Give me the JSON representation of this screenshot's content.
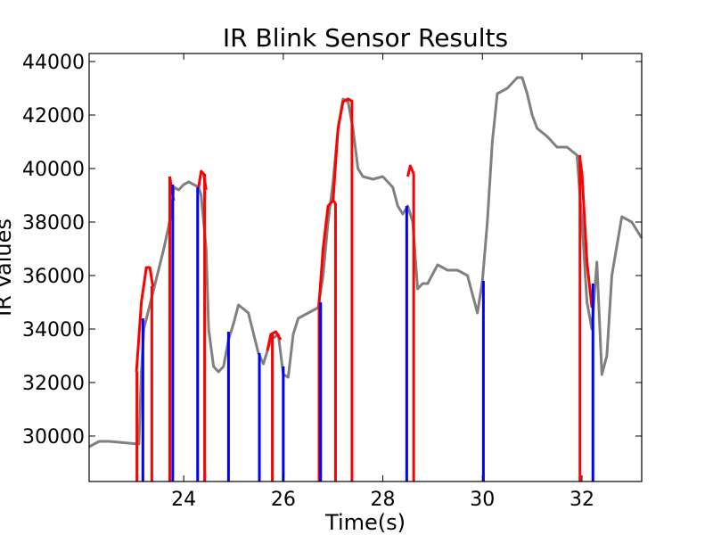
{
  "chart_data": {
    "type": "line",
    "title": "IR Blink Sensor Results",
    "xlabel": "Time(s)",
    "ylabel": "IR Values",
    "xlim": [
      22.1,
      33.2
    ],
    "ylim": [
      28300,
      44300
    ],
    "xticks": [
      24,
      26,
      28,
      30,
      32
    ],
    "yticks": [
      30000,
      32000,
      34000,
      36000,
      38000,
      40000,
      42000,
      44000
    ],
    "grid": false,
    "legend": "none",
    "colors": {
      "signal": "#808080",
      "blink": "#ff0000",
      "marker": "#0000ff"
    },
    "series": [
      {
        "style": "signal",
        "x": [
          22.1,
          22.3,
          22.5,
          22.8,
          23.1,
          23.15,
          23.2,
          23.4,
          23.6,
          23.75,
          23.8,
          23.9,
          24.0,
          24.1,
          24.2,
          24.3,
          24.35,
          24.45,
          24.5,
          24.6,
          24.7,
          24.8,
          24.9,
          25.0,
          25.1,
          25.3,
          25.5,
          25.6,
          25.75,
          25.9,
          26.0,
          26.1,
          26.2,
          26.3,
          26.5,
          26.7,
          26.8,
          26.9,
          27.0,
          27.1,
          27.2,
          27.3,
          27.4,
          27.5,
          27.6,
          27.8,
          28.0,
          28.2,
          28.3,
          28.4,
          28.5,
          28.6,
          28.7,
          28.8,
          28.9,
          29.1,
          29.3,
          29.5,
          29.7,
          29.9,
          30.0,
          30.1,
          30.2,
          30.3,
          30.5,
          30.7,
          30.8,
          30.9,
          31.0,
          31.1,
          31.3,
          31.5,
          31.7,
          31.9,
          32.0,
          32.1,
          32.2,
          32.3,
          32.4,
          32.5,
          32.6,
          32.8,
          33.0,
          33.2
        ],
        "y": [
          29600,
          29800,
          29800,
          29750,
          29700,
          32400,
          34000,
          35500,
          37000,
          38300,
          39300,
          39200,
          39400,
          39500,
          39400,
          39300,
          39000,
          37000,
          34000,
          32600,
          32400,
          32600,
          33600,
          34200,
          34900,
          34600,
          33100,
          32700,
          33600,
          33800,
          32300,
          32200,
          33800,
          34400,
          34600,
          34800,
          36000,
          38000,
          39500,
          41500,
          42600,
          42500,
          41500,
          40000,
          39700,
          39600,
          39700,
          39300,
          38600,
          38300,
          38600,
          38000,
          35500,
          35700,
          35700,
          36400,
          36200,
          36200,
          36000,
          34600,
          35800,
          38000,
          41000,
          42800,
          43000,
          43400,
          43400,
          42800,
          42000,
          41500,
          41200,
          40800,
          40800,
          40500,
          38000,
          35000,
          34000,
          36500,
          32300,
          33000,
          36000,
          38200,
          38000,
          37400
        ]
      },
      {
        "style": "blink",
        "segments": [
          {
            "x": [
              23.05,
              23.15,
              23.25,
              23.32,
              23.38
            ],
            "y": [
              32400,
              35000,
              36300,
              36300,
              35600
            ]
          },
          {
            "x": [
              23.72,
              23.76,
              23.8
            ],
            "y": [
              39700,
              39200,
              38800
            ]
          },
          {
            "x": [
              24.3,
              24.35,
              24.4,
              24.45
            ],
            "y": [
              39300,
              39900,
              39800,
              39200
            ]
          },
          {
            "x": [
              25.68,
              25.75,
              25.85,
              25.95
            ],
            "y": [
              33200,
              33800,
              33900,
              33600
            ]
          },
          {
            "x": [
              26.72,
              26.8,
              26.9,
              27.0,
              27.05
            ],
            "y": [
              35000,
              37000,
              38600,
              38800,
              38700
            ]
          },
          {
            "x": [
              27.0,
              27.1,
              27.2,
              27.3,
              27.4
            ],
            "y": [
              38800,
              41500,
              42500,
              42600,
              42500
            ]
          },
          {
            "x": [
              28.5,
              28.55,
              28.62
            ],
            "y": [
              39700,
              40100,
              39800
            ]
          },
          {
            "x": [
              31.95,
              32.0,
              32.1,
              32.2
            ],
            "y": [
              40500,
              39800,
              36500,
              34800
            ]
          }
        ]
      }
    ],
    "drop_lines": [
      {
        "style": "blink",
        "x": 23.06,
        "y": 32400
      },
      {
        "style": "blink",
        "x": 23.36,
        "y": 35600
      },
      {
        "style": "blink",
        "x": 23.72,
        "y": 39700
      },
      {
        "style": "blink",
        "x": 24.42,
        "y": 39800
      },
      {
        "style": "blink",
        "x": 25.78,
        "y": 33800
      },
      {
        "style": "blink",
        "x": 26.72,
        "y": 35000
      },
      {
        "style": "blink",
        "x": 27.05,
        "y": 38700
      },
      {
        "style": "blink",
        "x": 27.38,
        "y": 42500
      },
      {
        "style": "blink",
        "x": 28.62,
        "y": 39800
      },
      {
        "style": "blink",
        "x": 31.96,
        "y": 40500
      },
      {
        "style": "marker",
        "x": 23.18,
        "y": 34400
      },
      {
        "style": "marker",
        "x": 23.78,
        "y": 39400
      },
      {
        "style": "marker",
        "x": 24.28,
        "y": 39300
      },
      {
        "style": "marker",
        "x": 24.9,
        "y": 33900
      },
      {
        "style": "marker",
        "x": 25.52,
        "y": 33100
      },
      {
        "style": "marker",
        "x": 26.0,
        "y": 32600
      },
      {
        "style": "marker",
        "x": 26.75,
        "y": 35000
      },
      {
        "style": "marker",
        "x": 28.48,
        "y": 38600
      },
      {
        "style": "marker",
        "x": 30.02,
        "y": 35800
      },
      {
        "style": "marker",
        "x": 32.22,
        "y": 35700
      }
    ]
  }
}
